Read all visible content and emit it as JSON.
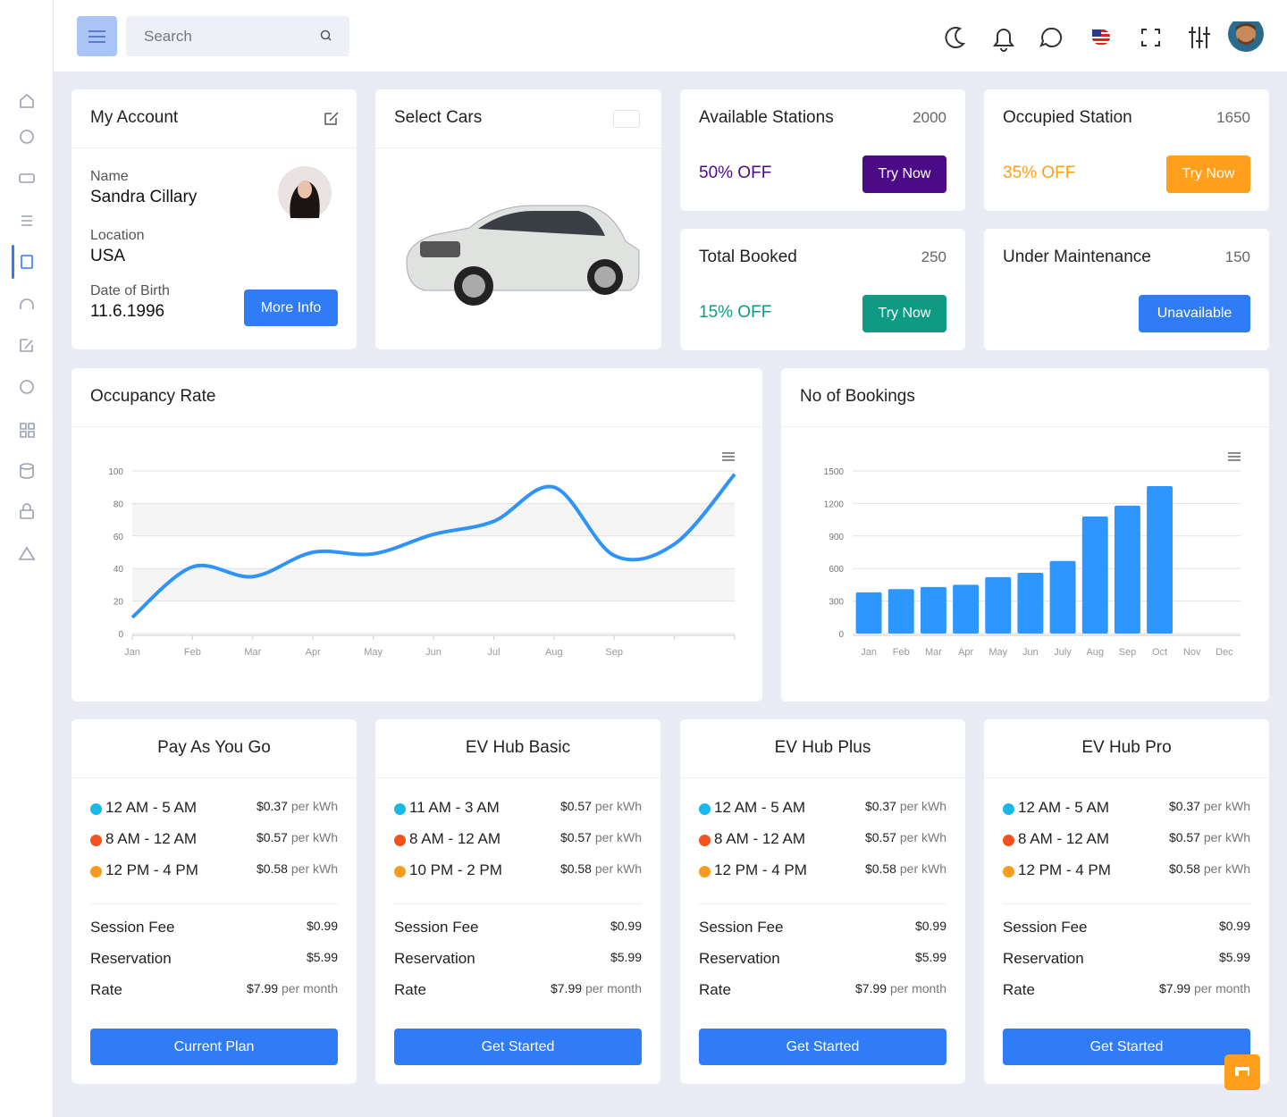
{
  "header": {
    "search_placeholder": "Search"
  },
  "account": {
    "title": "My Account",
    "name_label": "Name",
    "name": "Sandra Cillary",
    "location_label": "Location",
    "location": "USA",
    "dob_label": "Date of Birth",
    "dob": "11.6.1996",
    "button": "More Info"
  },
  "select_cars": {
    "title": "Select Cars"
  },
  "stats": [
    {
      "title": "Available Stations",
      "value": 2000,
      "offer": "50% OFF",
      "button": "Try Now",
      "color": "#4b0b86"
    },
    {
      "title": "Occupied Station",
      "value": 1650,
      "offer": "35% OFF",
      "button": "Try Now",
      "color": "#ff9f1c"
    },
    {
      "title": "Total Booked",
      "value": 250,
      "offer": "15% OFF",
      "button": "Try Now",
      "color": "#0f9a83"
    },
    {
      "title": "Under Maintenance",
      "value": 150,
      "button": "Unavailable",
      "color": "#2f7cf6"
    }
  ],
  "occupancy_chart": {
    "type": "line",
    "title": "Occupancy Rate",
    "categories": [
      "Jan",
      "Feb",
      "Mar",
      "Apr",
      "May",
      "Jun",
      "Jul",
      "Aug",
      "Sep",
      null,
      null
    ],
    "values": [
      10,
      41,
      35,
      50,
      49,
      61,
      69,
      90,
      48,
      55,
      98
    ],
    "color": "#2e93fa",
    "ylim": [
      0,
      100
    ],
    "yticks": [
      0,
      20,
      40,
      60,
      80,
      100
    ],
    "grid": true
  },
  "bookings_chart": {
    "type": "bar",
    "title": "No of Bookings",
    "categories": [
      "Jan",
      "Feb",
      "Mar",
      "Apr",
      "May",
      "Jun",
      "July",
      "Aug",
      "Sep",
      "Oct",
      "Nov",
      "Dec"
    ],
    "values": [
      380,
      410,
      430,
      450,
      520,
      560,
      670,
      1080,
      1180,
      1360,
      null,
      null
    ],
    "color": "#2e96ff",
    "ylim": [
      0,
      1500
    ],
    "yticks": [
      0,
      300,
      600,
      900,
      1200,
      1500
    ],
    "grid": true
  },
  "plans": [
    {
      "name": "Pay As You Go",
      "slots": [
        {
          "time": "12 AM - 5 AM",
          "color": "#1ab7ea",
          "price": "$0.37",
          "unit": "per kWh"
        },
        {
          "time": "8 AM - 12 AM",
          "color": "#f4511e",
          "price": "$0.57",
          "unit": "per kWh"
        },
        {
          "time": "12 PM - 4 PM",
          "color": "#f99b1c",
          "price": "$0.58",
          "unit": "per kWh"
        }
      ],
      "fees": [
        {
          "label": "Session Fee",
          "value": "$0.99"
        },
        {
          "label": "Reservation",
          "value": "$5.99"
        },
        {
          "label": "Rate",
          "value": "$7.99",
          "unit": "per month"
        }
      ],
      "button": "Current Plan"
    },
    {
      "name": "EV Hub Basic",
      "slots": [
        {
          "time": "11 AM - 3 AM",
          "color": "#1ab7ea",
          "price": "$0.57",
          "unit": "per kWh"
        },
        {
          "time": "8 AM - 12 AM",
          "color": "#f4511e",
          "price": "$0.57",
          "unit": "per kWh"
        },
        {
          "time": "10 PM - 2 PM",
          "color": "#f99b1c",
          "price": "$0.58",
          "unit": "per kWh"
        }
      ],
      "fees": [
        {
          "label": "Session Fee",
          "value": "$0.99"
        },
        {
          "label": "Reservation",
          "value": "$5.99"
        },
        {
          "label": "Rate",
          "value": "$7.99",
          "unit": "per month"
        }
      ],
      "button": "Get Started"
    },
    {
      "name": "EV Hub Plus",
      "slots": [
        {
          "time": "12 AM - 5 AM",
          "color": "#1ab7ea",
          "price": "$0.37",
          "unit": "per kWh"
        },
        {
          "time": "8 AM - 12 AM",
          "color": "#f4511e",
          "price": "$0.57",
          "unit": "per kWh"
        },
        {
          "time": "12 PM - 4 PM",
          "color": "#f99b1c",
          "price": "$0.58",
          "unit": "per kWh"
        }
      ],
      "fees": [
        {
          "label": "Session Fee",
          "value": "$0.99"
        },
        {
          "label": "Reservation",
          "value": "$5.99"
        },
        {
          "label": "Rate",
          "value": "$7.99",
          "unit": "per month"
        }
      ],
      "button": "Get Started"
    },
    {
      "name": "EV Hub Pro",
      "slots": [
        {
          "time": "12 AM - 5 AM",
          "color": "#1ab7ea",
          "price": "$0.37",
          "unit": "per kWh"
        },
        {
          "time": "8 AM - 12 AM",
          "color": "#f4511e",
          "price": "$0.57",
          "unit": "per kWh"
        },
        {
          "time": "12 PM - 4 PM",
          "color": "#f99b1c",
          "price": "$0.58",
          "unit": "per kWh"
        }
      ],
      "fees": [
        {
          "label": "Session Fee",
          "value": "$0.99"
        },
        {
          "label": "Reservation",
          "value": "$5.99"
        },
        {
          "label": "Rate",
          "value": "$7.99",
          "unit": "per month"
        }
      ],
      "button": "Get Started"
    }
  ]
}
